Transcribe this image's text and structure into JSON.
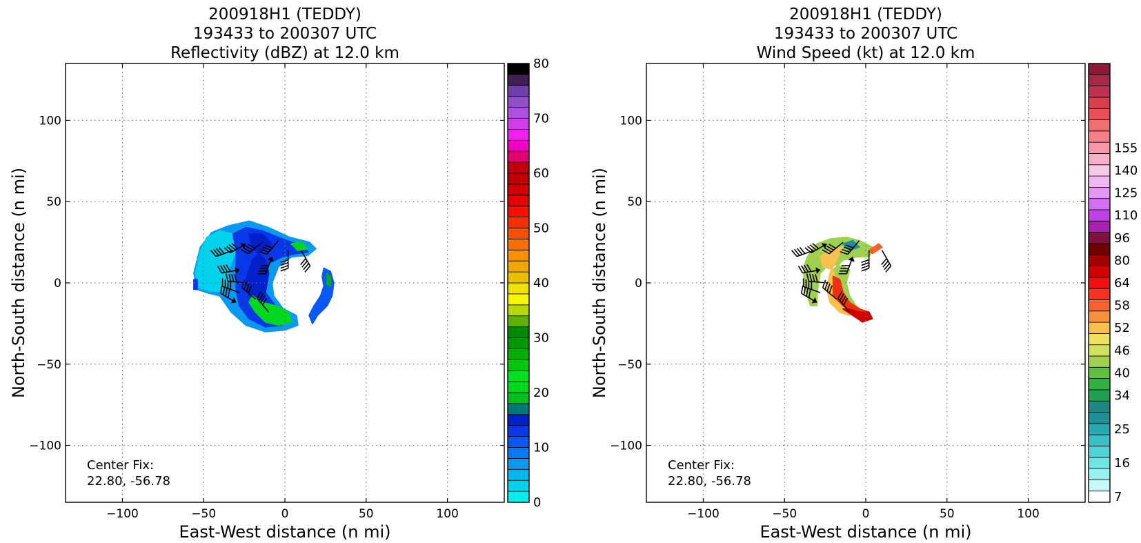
{
  "chart_data": [
    {
      "type": "heatmap",
      "title_lines": [
        "200918H1 (TEDDY)",
        "193433 to 200307 UTC",
        "Reflectivity (dBZ) at 12.0 km"
      ],
      "xlabel": "East-West distance (n mi)",
      "ylabel": "North-South distance (n mi)",
      "xlim": [
        -135,
        135
      ],
      "ylim": [
        -135,
        135
      ],
      "xticks": [
        -100,
        -50,
        0,
        50,
        100
      ],
      "yticks": [
        -100,
        -50,
        0,
        50,
        100
      ],
      "xtick_labels": [
        "−100",
        "−50",
        "0",
        "50",
        "100"
      ],
      "ytick_labels": [
        "−100",
        "−50",
        "0",
        "50",
        "100"
      ],
      "grid": true,
      "annotation": [
        "Center Fix:",
        "22.80, -56.78"
      ],
      "colorbar": {
        "min": 0,
        "max": 80,
        "tick_values": [
          0,
          10,
          20,
          30,
          40,
          50,
          60,
          70,
          80
        ],
        "tick_labels": [
          "0",
          "10",
          "20",
          "30",
          "40",
          "50",
          "60",
          "70",
          "80"
        ],
        "colors": [
          "#00eeee",
          "#00d2ec",
          "#00b8ee",
          "#0a98f0",
          "#0878f4",
          "#0858f4",
          "#0838e8",
          "#0020cc",
          "#007878",
          "#00c020",
          "#00d820",
          "#00e020",
          "#00c810",
          "#00b000",
          "#009800",
          "#008800",
          "#60b000",
          "#b8d800",
          "#f8f800",
          "#f0e000",
          "#e8c000",
          "#f0a800",
          "#f89000",
          "#f87000",
          "#f85000",
          "#f83000",
          "#f81000",
          "#e80000",
          "#d00000",
          "#c00000",
          "#c00010",
          "#e00070",
          "#f000c0",
          "#f020f0",
          "#d040e8",
          "#b050e0",
          "#9050c8",
          "#7040a8",
          "#402050",
          "#000000"
        ]
      },
      "field_description": "reflectivity echoes and wind barbs around storm center"
    },
    {
      "type": "heatmap",
      "title_lines": [
        "200918H1 (TEDDY)",
        "193433 to 200307 UTC",
        "Wind Speed (kt) at 12.0 km"
      ],
      "xlabel": "East-West distance (n mi)",
      "ylabel": "North-South distance (n mi)",
      "xlim": [
        -135,
        135
      ],
      "ylim": [
        -135,
        135
      ],
      "xticks": [
        -100,
        -50,
        0,
        50,
        100
      ],
      "yticks": [
        -100,
        -50,
        0,
        50,
        100
      ],
      "xtick_labels": [
        "−100",
        "−50",
        "0",
        "50",
        "100"
      ],
      "ytick_labels": [
        "−100",
        "−50",
        "0",
        "50",
        "100"
      ],
      "grid": true,
      "annotation": [
        "Center Fix:",
        "22.80, -56.78"
      ],
      "colorbar": {
        "tick_labels": [
          "7",
          "16",
          "25",
          "34",
          "40",
          "46",
          "52",
          "58",
          "64",
          "80",
          "96",
          "110",
          "125",
          "140",
          "155"
        ],
        "tick_bins": [
          0,
          3,
          6,
          9,
          11,
          13,
          15,
          17,
          19,
          21,
          23,
          25,
          27,
          29,
          31
        ],
        "colors": [
          "#ffffff",
          "#c8f8f8",
          "#98f0f0",
          "#70e4e4",
          "#50d4d8",
          "#38c0c8",
          "#28a8b0",
          "#209098",
          "#208880",
          "#20a050",
          "#30b040",
          "#60c040",
          "#a0d050",
          "#d0e060",
          "#f0e060",
          "#f8c050",
          "#f89040",
          "#f86030",
          "#f83020",
          "#f01010",
          "#d00000",
          "#a00000",
          "#700000",
          "#801040",
          "#a820b0",
          "#c040e8",
          "#d070f0",
          "#e098f0",
          "#f0b8f0",
          "#f8c8e8",
          "#f8b0c8",
          "#f898a8",
          "#f88088",
          "#f07070",
          "#e85058",
          "#d84050",
          "#c03050",
          "#a82848",
          "#901838"
        ]
      },
      "field_description": "wind speed and wind barbs around storm center"
    }
  ]
}
